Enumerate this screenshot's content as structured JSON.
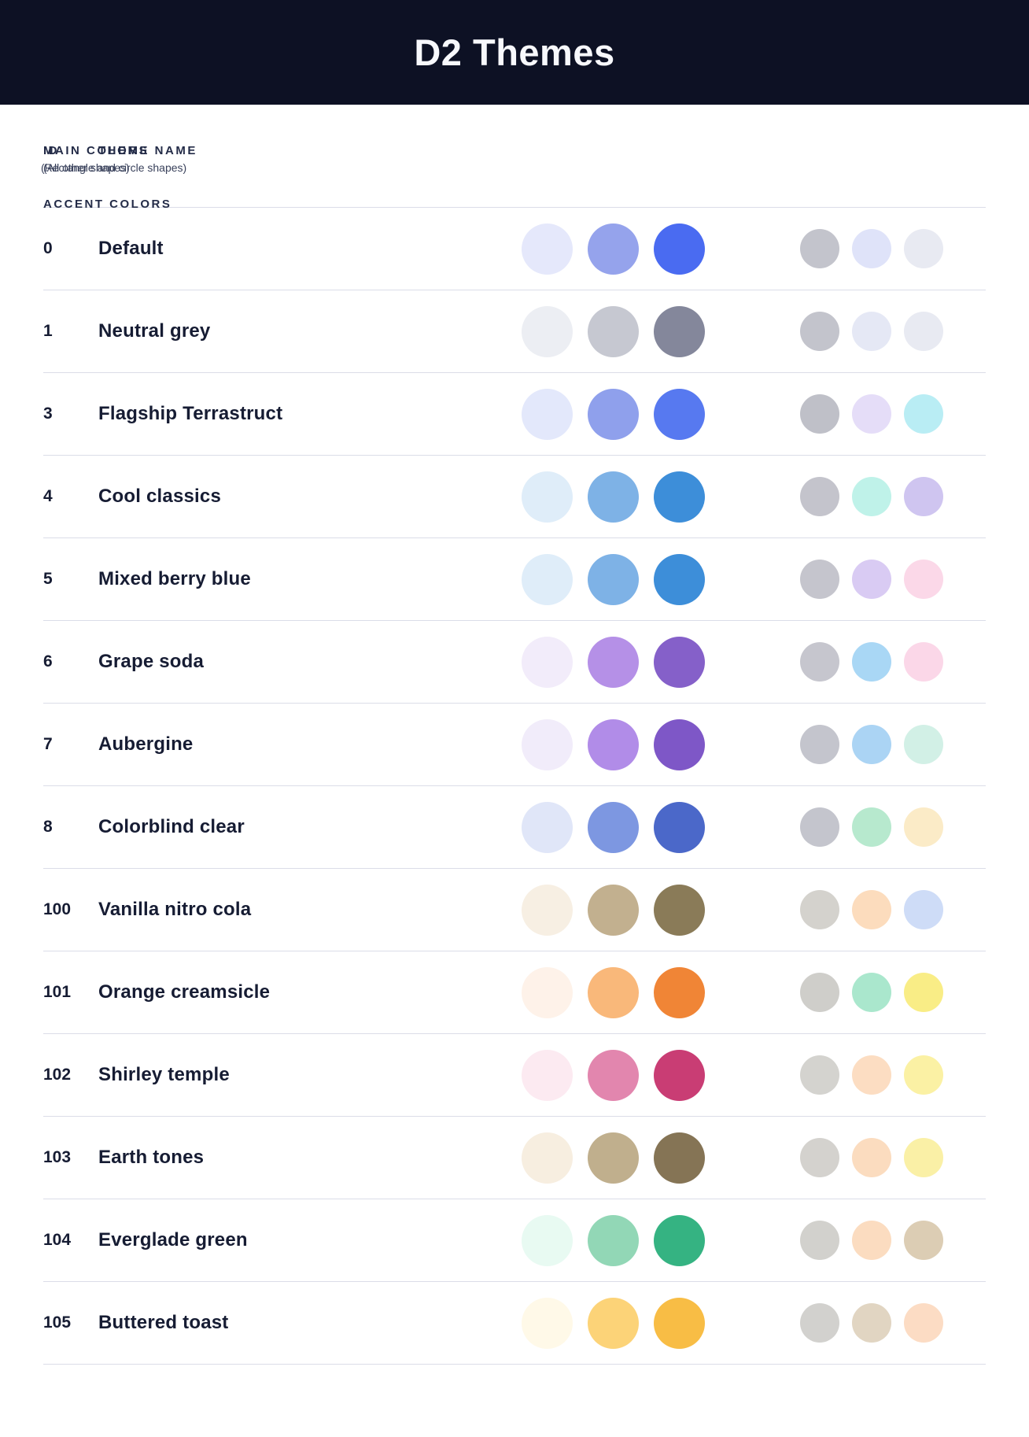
{
  "title": "D2 Themes",
  "columns": {
    "id": "ID",
    "theme_name": "THEME NAME",
    "main_colors": "MAIN COLORS",
    "main_colors_sub": "(Rectangle and circle shapes)",
    "accent_colors": "ACCENT COLORS",
    "accent_colors_sub": "(All other shapes)"
  },
  "colors": {
    "header_bg": "#0D1124",
    "header_text": "#F7F8FC",
    "heading_text": "#232B47",
    "row_text": "#161C33",
    "divider": "#DBDDE8"
  },
  "themes": [
    {
      "id": "0",
      "name": "Default",
      "main": [
        "#E5E8FB",
        "#95A3EC",
        "#4A6BF1"
      ],
      "accent": [
        "#C3C4CC",
        "#DFE3F9",
        "#E8EAF2"
      ]
    },
    {
      "id": "1",
      "name": "Neutral grey",
      "main": [
        "#ECEEF3",
        "#C6C8D1",
        "#84879B"
      ],
      "accent": [
        "#C3C4CC",
        "#E5E8F5",
        "#E8EAF2"
      ]
    },
    {
      "id": "3",
      "name": "Flagship Terrastruct",
      "main": [
        "#E3E8FB",
        "#8FA0EC",
        "#5779F0"
      ],
      "accent": [
        "#BFC0C8",
        "#E5DDF8",
        "#B9EDF4"
      ]
    },
    {
      "id": "4",
      "name": "Cool classics",
      "main": [
        "#DFEDF9",
        "#7EB2E6",
        "#3D8ED9"
      ],
      "accent": [
        "#C4C4CC",
        "#BFF2E9",
        "#CFC5F0"
      ]
    },
    {
      "id": "5",
      "name": "Mixed berry blue",
      "main": [
        "#DFEDF9",
        "#7EB2E6",
        "#3D8ED9"
      ],
      "accent": [
        "#C5C5CD",
        "#D9CBF3",
        "#FBD8E8"
      ]
    },
    {
      "id": "6",
      "name": "Grape soda",
      "main": [
        "#F2ECFA",
        "#B590E7",
        "#8560C9"
      ],
      "accent": [
        "#C6C6CE",
        "#A9D7F5",
        "#FBD7E8"
      ]
    },
    {
      "id": "7",
      "name": "Aubergine",
      "main": [
        "#F1ECFA",
        "#B18CE8",
        "#7E57C7"
      ],
      "accent": [
        "#C4C5CD",
        "#ABD4F4",
        "#D2F0E6"
      ]
    },
    {
      "id": "8",
      "name": "Colorblind clear",
      "main": [
        "#E0E6F8",
        "#7D97E1",
        "#4B68C9"
      ],
      "accent": [
        "#C4C5CD",
        "#B7E9CE",
        "#FBEBC7"
      ]
    },
    {
      "id": "100",
      "name": "Vanilla nitro cola",
      "main": [
        "#F7EFE3",
        "#C2B08F",
        "#8A7B58"
      ],
      "accent": [
        "#D4D2CD",
        "#FCDCBD",
        "#CEDCF7"
      ]
    },
    {
      "id": "101",
      "name": "Orange creamsicle",
      "main": [
        "#FEF2E9",
        "#F9B87A",
        "#F08536"
      ],
      "accent": [
        "#CFCECA",
        "#AAE7CD",
        "#F9ED86"
      ]
    },
    {
      "id": "102",
      "name": "Shirley temple",
      "main": [
        "#FCEAF1",
        "#E286AE",
        "#C93D74"
      ],
      "accent": [
        "#D4D3CF",
        "#FCDDC2",
        "#FBF1A4"
      ]
    },
    {
      "id": "103",
      "name": "Earth tones",
      "main": [
        "#F7EEE0",
        "#C0AF8D",
        "#857455"
      ],
      "accent": [
        "#D4D2CE",
        "#FBDCBF",
        "#FAF0A6"
      ]
    },
    {
      "id": "104",
      "name": "Everglade green",
      "main": [
        "#E8FAF2",
        "#92D7B6",
        "#35B382"
      ],
      "accent": [
        "#D2D1CD",
        "#FBDCC0",
        "#DCCDB4"
      ]
    },
    {
      "id": "105",
      "name": "Buttered toast",
      "main": [
        "#FFF9E8",
        "#FCD378",
        "#F8BD45"
      ],
      "accent": [
        "#D2D1CE",
        "#E1D5C2",
        "#FCDCC4"
      ]
    }
  ]
}
